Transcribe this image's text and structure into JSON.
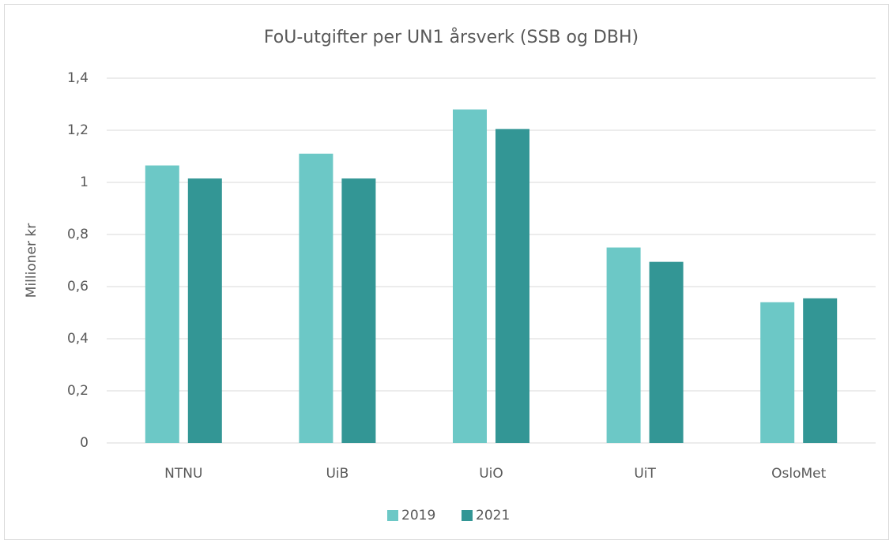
{
  "chart_data": {
    "type": "bar",
    "title": "FoU-utgifter per UN1 årsverk (SSB og DBH)",
    "y_label": "Millioner kr",
    "categories": [
      "NTNU",
      "UiB",
      "UiO",
      "UiT",
      "OsloMet"
    ],
    "series": [
      {
        "name": "2019",
        "color": "#6cc8c6",
        "values": [
          1.065,
          1.11,
          1.28,
          0.75,
          0.54
        ]
      },
      {
        "name": "2021",
        "color": "#339695",
        "values": [
          1.015,
          1.015,
          1.205,
          0.695,
          0.555
        ]
      }
    ],
    "ylim": [
      0,
      1.4
    ],
    "yticks": [
      0,
      {
        "value": 0.2,
        "label": "0,2"
      },
      {
        "value": 0.4,
        "label": "0,4"
      },
      {
        "value": 0.6,
        "label": "0,6"
      },
      {
        "value": 0.8,
        "label": "0,8"
      },
      1,
      {
        "value": 1.2,
        "label": "1,2"
      },
      {
        "value": 1.4,
        "label": "1,4"
      }
    ],
    "grid": true,
    "legend": "bottom"
  }
}
